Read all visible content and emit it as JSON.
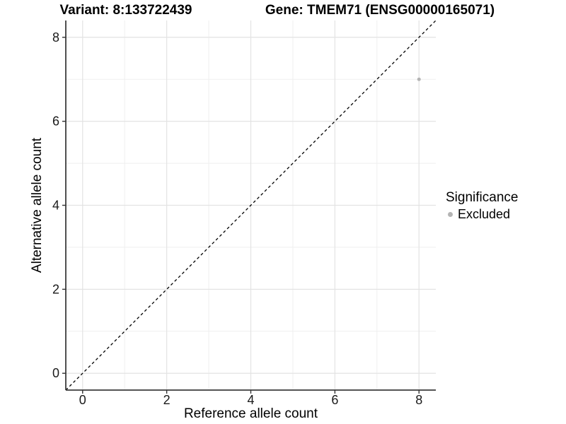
{
  "chart_data": {
    "type": "scatter",
    "title_left": "Variant: 8:133722439",
    "title_right": "Gene: TMEM71 (ENSG00000165071)",
    "xlabel": "Reference allele count",
    "ylabel": "Alternative allele count",
    "xlim": [
      -0.4,
      8.4
    ],
    "ylim": [
      -0.4,
      8.4
    ],
    "xticks": [
      0,
      2,
      4,
      6,
      8
    ],
    "yticks": [
      0,
      2,
      4,
      6,
      8
    ],
    "minor_gridlines": [
      1,
      3,
      5,
      7
    ],
    "grid": "on",
    "identity_line": {
      "slope": 1,
      "intercept": 0,
      "style": "dashed",
      "color": "#000000"
    },
    "series": [
      {
        "name": "Excluded",
        "color": "#b4b4b4",
        "points": [
          {
            "x": 8,
            "y": 7
          }
        ]
      }
    ],
    "legend": {
      "position": "right",
      "title": "Significance",
      "items": [
        {
          "label": "Excluded",
          "color": "#b4b4b4"
        }
      ]
    },
    "colors": {
      "background": "#ffffff",
      "grid_major": "#e3e3e3",
      "grid_minor": "#efefef",
      "axis_line": "#3c3c3c",
      "tick_mark": "#333333",
      "tick_text": "#1a1a1a",
      "axis_title_text": "#000000"
    }
  }
}
